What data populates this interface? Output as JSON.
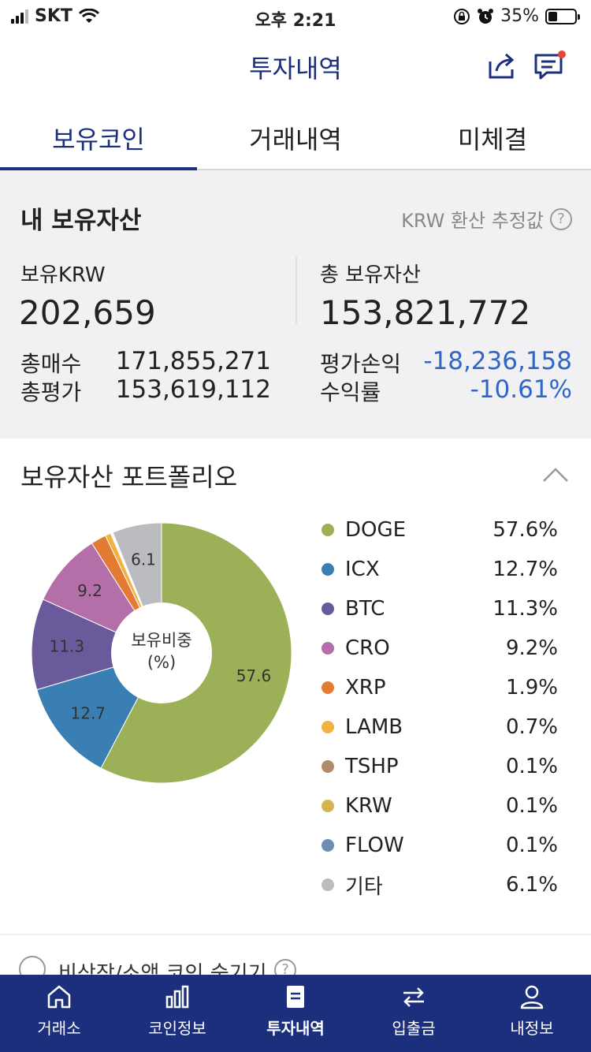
{
  "status": {
    "carrier": "SKT",
    "time": "오후 2:21",
    "battery": "35%"
  },
  "header": {
    "title": "투자내역"
  },
  "tabs": [
    {
      "label": "보유코인"
    },
    {
      "label": "거래내역"
    },
    {
      "label": "미체결"
    }
  ],
  "assets": {
    "title": "내 보유자산",
    "note": "KRW 환산 추정값",
    "krw_label": "보유KRW",
    "krw_value": "202,659",
    "total_label": "총 보유자산",
    "total_value": "153,821,772",
    "buy_label": "총매수",
    "buy_value": "171,855,271",
    "eval_label": "총평가",
    "eval_value": "153,619,112",
    "pl_label": "평가손익",
    "pl_value": "-18,236,158",
    "rate_label": "수익률",
    "rate_value": "-10.61%"
  },
  "portfolio": {
    "title": "보유자산 포트폴리오",
    "center_line1": "보유비중",
    "center_line2": "(%)"
  },
  "chart_data": {
    "type": "pie",
    "categories": [
      "DOGE",
      "ICX",
      "BTC",
      "CRO",
      "XRP",
      "LAMB",
      "TSHP",
      "KRW",
      "FLOW",
      "기타"
    ],
    "values": [
      57.6,
      12.7,
      11.3,
      9.2,
      1.9,
      0.7,
      0.1,
      0.1,
      0.1,
      6.1
    ],
    "labels": [
      "57.6%",
      "12.7%",
      "11.3%",
      "9.2%",
      "1.9%",
      "0.7%",
      "0.1%",
      "0.1%",
      "0.1%",
      "6.1%"
    ],
    "slice_labels": [
      "57.6",
      "12.7",
      "11.3",
      "9.2",
      "",
      "",
      "",
      "",
      "",
      "6.1"
    ],
    "colors": [
      "#9cb157",
      "#3a7fb4",
      "#6a5a9b",
      "#b46fa9",
      "#e47b34",
      "#f2b241",
      "#b08c6e",
      "#d4b44e",
      "#6b8daf",
      "#bbbcc0"
    ],
    "legend_position": "right"
  },
  "hide_option": {
    "label": "비상장/소액 코인 숨기기"
  },
  "tabbar": [
    {
      "label": "거래소"
    },
    {
      "label": "코인정보"
    },
    {
      "label": "투자내역"
    },
    {
      "label": "입출금"
    },
    {
      "label": "내정보"
    }
  ]
}
